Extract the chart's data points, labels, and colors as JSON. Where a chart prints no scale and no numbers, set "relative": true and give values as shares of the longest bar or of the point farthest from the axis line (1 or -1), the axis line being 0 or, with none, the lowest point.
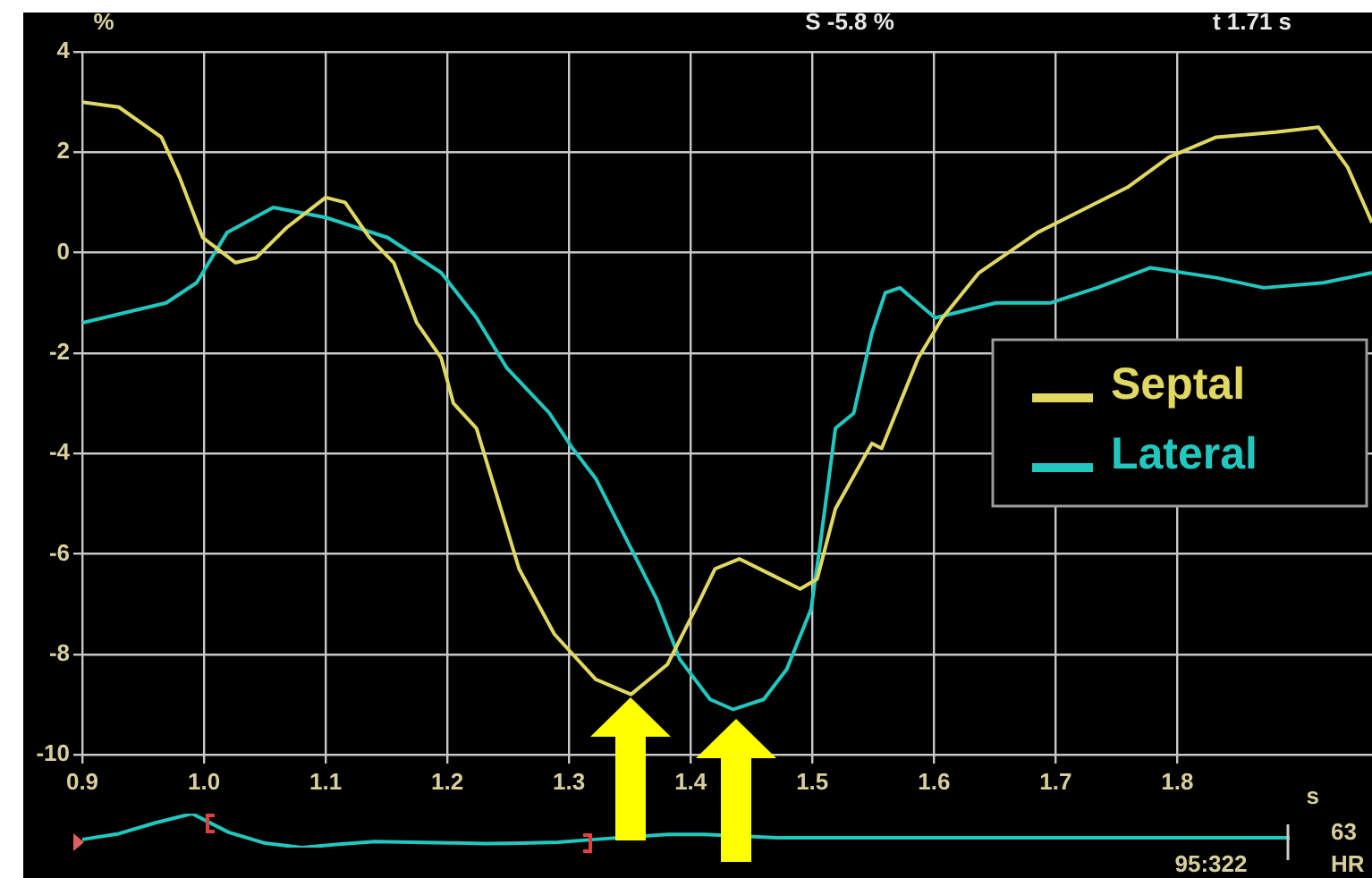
{
  "chart_data": [
    {
      "type": "line",
      "ylabel": "%",
      "xlabel": "s",
      "xlim": [
        0.9,
        1.96
      ],
      "xticks": [
        0.9,
        {
          "value": 1,
          "label": "1.0"
        },
        1.1,
        1.2,
        1.3,
        1.4,
        1.5,
        1.6,
        1.7,
        1.8
      ],
      "ylim": [
        -10,
        4
      ],
      "yticks": [
        4,
        2,
        0,
        -2,
        -4,
        -6,
        -8,
        -10
      ],
      "grid": true,
      "legend": "right",
      "marker": "none",
      "line_style": "solid",
      "annotations": [
        "S -5.8 %",
        "t 1.71 s",
        "95:322",
        "63",
        "HR"
      ],
      "series": [
        {
          "name": "Septal",
          "color": "#e0d860",
          "x": [
            0.9,
            0.93,
            0.965,
            0.98,
            0.999,
            1.026,
            1.043,
            1.068,
            1.1,
            1.116,
            1.136,
            1.156,
            1.175,
            1.195,
            1.205,
            1.224,
            1.244,
            1.259,
            1.288,
            1.322,
            1.351,
            1.381,
            1.406,
            1.42,
            1.44,
            1.465,
            1.49,
            1.504,
            1.519,
            1.549,
            1.557,
            1.587,
            1.607,
            1.637,
            1.685,
            1.759,
            1.793,
            1.832,
            1.881,
            1.916,
            1.94,
            1.96
          ],
          "values": [
            3.0,
            2.9,
            2.3,
            1.5,
            0.3,
            -0.2,
            -0.1,
            0.5,
            1.1,
            1.0,
            0.3,
            -0.2,
            -1.4,
            -2.1,
            -3.0,
            -3.5,
            -5.1,
            -6.3,
            -7.6,
            -8.5,
            -8.8,
            -8.2,
            -7.0,
            -6.3,
            -6.1,
            -6.4,
            -6.7,
            -6.5,
            -5.1,
            -3.8,
            -3.9,
            -2.1,
            -1.3,
            -0.4,
            0.4,
            1.3,
            1.9,
            2.3,
            2.4,
            2.5,
            1.7,
            0.6
          ]
        },
        {
          "name": "Lateral",
          "color": "#20c8c0",
          "x": [
            0.9,
            0.969,
            0.994,
            1.019,
            1.057,
            1.1,
            1.151,
            1.195,
            1.224,
            1.249,
            1.284,
            1.303,
            1.322,
            1.347,
            1.372,
            1.391,
            1.416,
            1.435,
            1.46,
            1.479,
            1.499,
            1.506,
            1.519,
            1.534,
            1.549,
            1.56,
            1.572,
            1.601,
            1.651,
            1.696,
            1.734,
            1.778,
            1.832,
            1.871,
            1.92,
            1.96
          ],
          "values": [
            -1.4,
            -1.0,
            -0.6,
            0.4,
            0.9,
            0.7,
            0.3,
            -0.4,
            -1.3,
            -2.3,
            -3.2,
            -3.9,
            -4.5,
            -5.7,
            -6.9,
            -8.1,
            -8.9,
            -9.1,
            -8.9,
            -8.3,
            -7.1,
            -5.9,
            -3.5,
            -3.2,
            -1.6,
            -0.8,
            -0.7,
            -1.3,
            -1.0,
            -1.0,
            -0.7,
            -0.3,
            -0.5,
            -0.7,
            -0.6,
            -0.4
          ]
        }
      ]
    },
    {
      "type": "line",
      "relative": true,
      "marker": "none",
      "line_style": "solid",
      "categories": [
        null,
        null,
        null,
        null,
        null,
        null,
        null,
        null,
        null,
        null,
        null,
        null,
        null,
        null,
        null,
        null,
        null,
        null,
        null,
        null,
        null,
        null,
        null,
        null,
        null,
        null,
        null,
        null,
        null,
        null,
        null,
        null,
        null,
        null
      ],
      "series": [
        {
          "color": "#20c8c0",
          "values": [
            0.24,
            0.41,
            0.73,
            1,
            0.45,
            0.13,
            0,
            0.1,
            0.18,
            0.16,
            0.14,
            0.12,
            0.13,
            0.16,
            0.24,
            null,
            0.39,
            0.39,
            null,
            0.29,
            0.29,
            0.29,
            0.29,
            0.29,
            0.29,
            0.29,
            0.29,
            0.29,
            0.29,
            0.29,
            0.29,
            0.29,
            0.29,
            0.29
          ]
        }
      ]
    }
  ]
}
